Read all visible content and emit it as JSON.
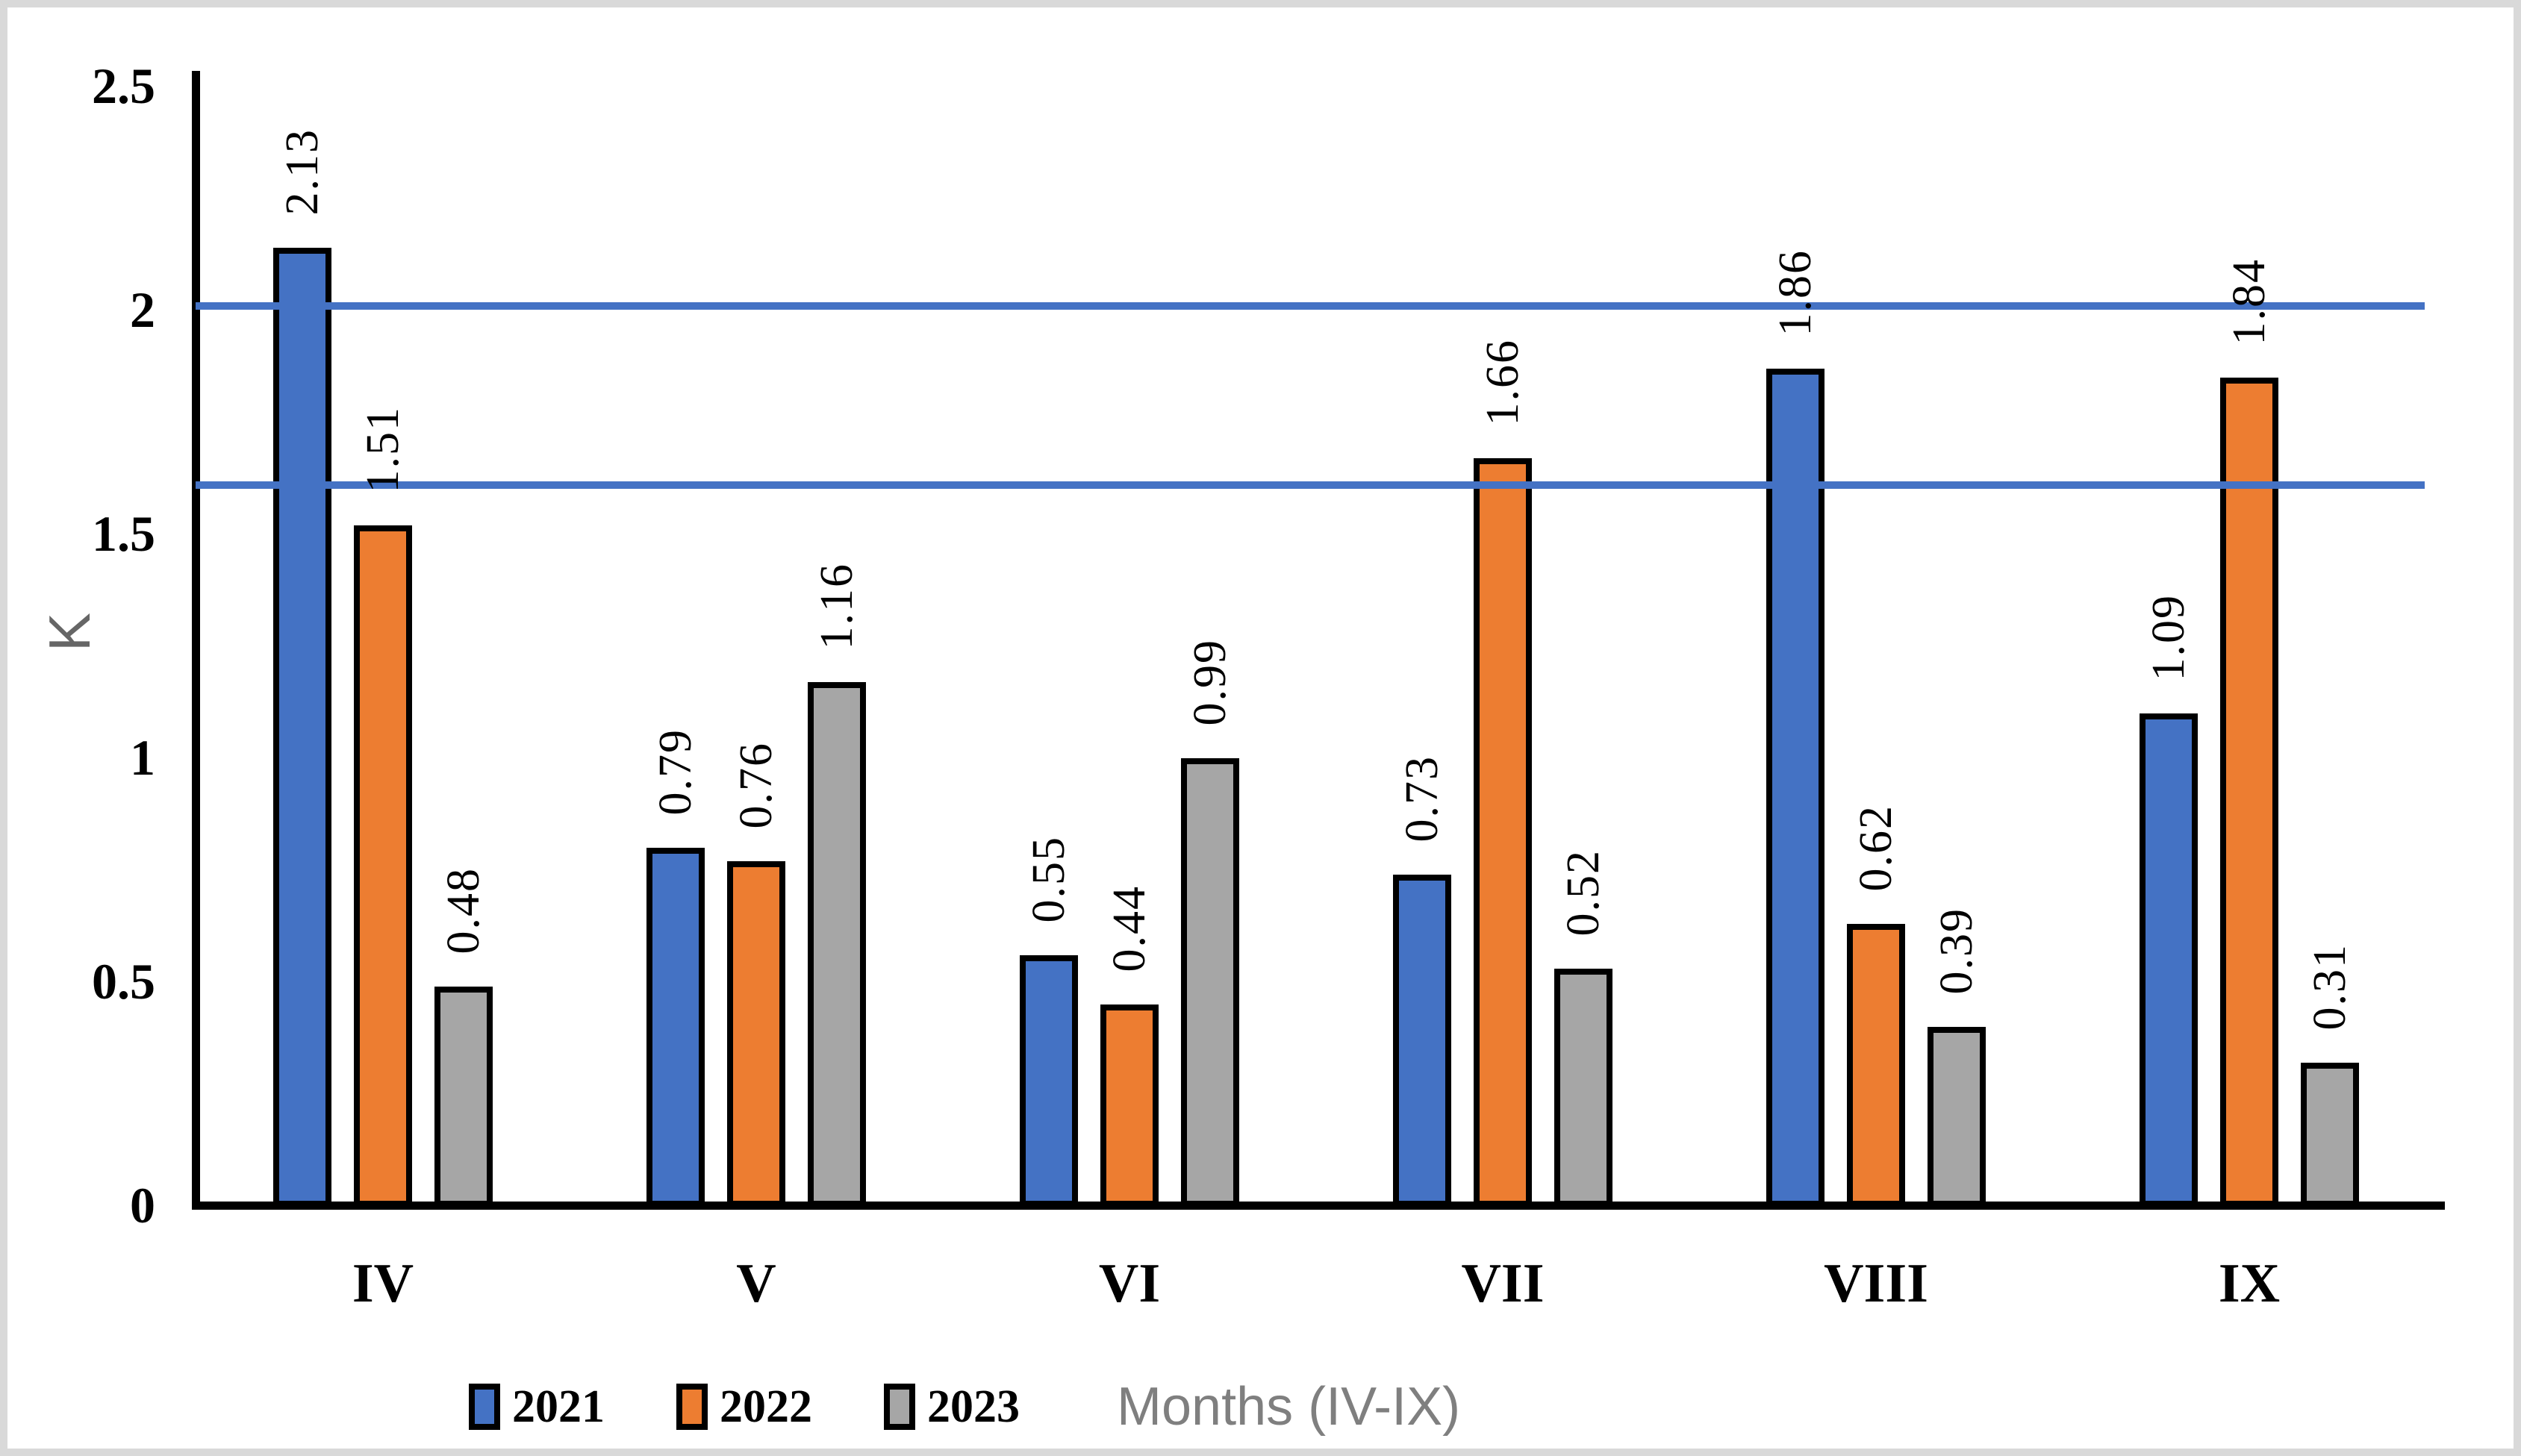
{
  "frame": {
    "border_color": "#d9d9d9",
    "background": "#ffffff"
  },
  "y_axis": {
    "label": "K",
    "label_color": "#666666",
    "tick_labels": [
      "2.5",
      "2",
      "1.5",
      "1",
      "0.5",
      "0"
    ],
    "tick_values": [
      2.5,
      2,
      1.5,
      1,
      0.5,
      0
    ]
  },
  "x_axis": {
    "title": "Months (IV-IX)",
    "title_color": "#7f7f7f",
    "categories": [
      "IV",
      "V",
      "VI",
      "VII",
      "VIII",
      "IX"
    ]
  },
  "legend": {
    "position": "bottom",
    "items": [
      {
        "label": "2021",
        "color": "#4472C4"
      },
      {
        "label": "2022",
        "color": "#ED7D31"
      },
      {
        "label": "2023",
        "color": "#A6A6A6"
      }
    ]
  },
  "chart_data": {
    "type": "bar",
    "title": "",
    "categories": [
      "IV",
      "V",
      "VI",
      "VII",
      "VIII",
      "IX"
    ],
    "series": [
      {
        "name": "2021",
        "color": "#4472C4",
        "values": [
          2.13,
          0.79,
          0.55,
          0.73,
          1.86,
          1.09
        ],
        "labels": [
          "2.13",
          "0.79",
          "0.55",
          "0.73",
          "1.86",
          "1.09"
        ]
      },
      {
        "name": "2022",
        "color": "#ED7D31",
        "values": [
          1.51,
          0.76,
          0.44,
          1.66,
          0.62,
          1.84
        ],
        "labels": [
          "1.51",
          "0.76",
          "0.44",
          "1.66",
          "0.62",
          "1.84"
        ]
      },
      {
        "name": "2023",
        "color": "#A6A6A6",
        "values": [
          0.48,
          1.16,
          0.99,
          0.52,
          0.39,
          0.31
        ],
        "labels": [
          "0.48",
          "1.16",
          "0.99",
          "0.52",
          "0.39",
          "0.31"
        ]
      }
    ],
    "xlabel": "Months (IV-IX)",
    "ylabel": "K",
    "ylim": [
      0,
      2.5
    ],
    "y_tick_step": 0.5,
    "grid": false,
    "legend_position": "bottom",
    "data_labels": true,
    "data_label_rotation": -90,
    "bar_outline_color": "#000000",
    "reference_lines": {
      "color": "#4472C4",
      "values": [
        2.0,
        1.6
      ]
    }
  }
}
